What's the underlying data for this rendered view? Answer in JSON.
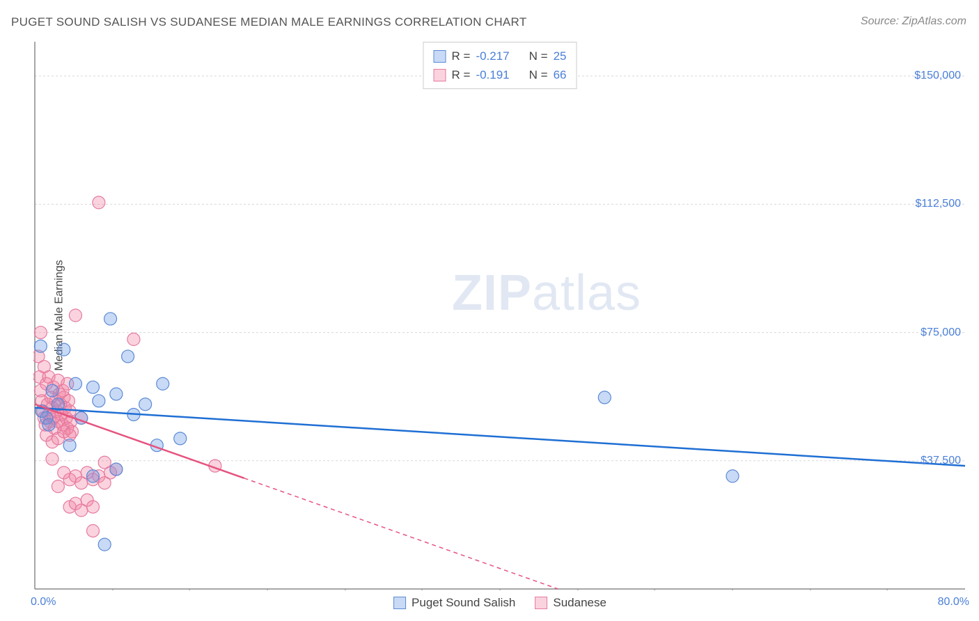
{
  "title": "PUGET SOUND SALISH VS SUDANESE MEDIAN MALE EARNINGS CORRELATION CHART",
  "source": "Source: ZipAtlas.com",
  "y_axis_label": "Median Male Earnings",
  "watermark_zip": "ZIP",
  "watermark_atlas": "atlas",
  "chart": {
    "type": "scatter",
    "xlim": [
      0,
      80
    ],
    "ylim": [
      0,
      160000
    ],
    "x_tick_left": "0.0%",
    "x_tick_right": "80.0%",
    "x_minor_ticks": [
      6.7,
      13.3,
      20,
      26.7,
      33.3,
      40,
      46.7,
      53.3,
      60,
      66.7,
      73.3
    ],
    "y_ticks": [
      37500,
      75000,
      112500,
      150000
    ],
    "y_tick_labels": [
      "$37,500",
      "$75,000",
      "$112,500",
      "$150,000"
    ],
    "background_color": "#ffffff",
    "grid_color": "#d8d8d8",
    "axis_color": "#888888",
    "series": [
      {
        "name": "Puget Sound Salish",
        "color_fill": "rgba(100,150,230,0.35)",
        "color_stroke": "#5a8ad6",
        "trend_color": "#1f6fd4",
        "r_label": "R =",
        "r_value": "-0.217",
        "n_label": "N =",
        "n_value": "25",
        "trend": {
          "x1": 0,
          "y1": 53000,
          "x2": 80,
          "y2": 36000,
          "solid_until_x": 80
        },
        "points": [
          [
            0.5,
            71000
          ],
          [
            0.6,
            52000
          ],
          [
            1.0,
            50000
          ],
          [
            1.2,
            48000
          ],
          [
            1.5,
            58000
          ],
          [
            2.0,
            54000
          ],
          [
            2.5,
            70000
          ],
          [
            3.0,
            42000
          ],
          [
            3.5,
            60000
          ],
          [
            4.0,
            50000
          ],
          [
            5.0,
            59000
          ],
          [
            5.5,
            55000
          ],
          [
            6.5,
            79000
          ],
          [
            7.0,
            57000
          ],
          [
            8.0,
            68000
          ],
          [
            8.5,
            51000
          ],
          [
            9.5,
            54000
          ],
          [
            10.5,
            42000
          ],
          [
            11.0,
            60000
          ],
          [
            12.5,
            44000
          ],
          [
            5.0,
            33000
          ],
          [
            6.0,
            13000
          ],
          [
            49.0,
            56000
          ],
          [
            60.0,
            33000
          ],
          [
            7.0,
            35000
          ]
        ]
      },
      {
        "name": "Sudanese",
        "color_fill": "rgba(240,130,160,0.35)",
        "color_stroke": "#e67aa0",
        "trend_color": "#e5537f",
        "r_label": "R =",
        "r_value": "-0.191",
        "n_label": "N =",
        "n_value": "66",
        "trend": {
          "x1": 0,
          "y1": 54000,
          "x2": 45,
          "y2": 0,
          "solid_until_x": 18
        },
        "points": [
          [
            0.3,
            68000
          ],
          [
            0.4,
            62000
          ],
          [
            0.5,
            58000
          ],
          [
            0.6,
            55000
          ],
          [
            0.7,
            52000
          ],
          [
            0.8,
            50000
          ],
          [
            0.9,
            48000
          ],
          [
            1.0,
            60000
          ],
          [
            1.1,
            54000
          ],
          [
            1.2,
            51000
          ],
          [
            1.3,
            49000
          ],
          [
            1.4,
            56000
          ],
          [
            1.5,
            53000
          ],
          [
            1.6,
            50000
          ],
          [
            1.7,
            47000
          ],
          [
            1.8,
            55000
          ],
          [
            1.9,
            52000
          ],
          [
            2.0,
            49000
          ],
          [
            2.1,
            57000
          ],
          [
            2.2,
            54000
          ],
          [
            2.3,
            51000
          ],
          [
            2.4,
            48000
          ],
          [
            2.5,
            56000
          ],
          [
            2.6,
            53000
          ],
          [
            2.7,
            50000
          ],
          [
            2.8,
            47000
          ],
          [
            2.9,
            55000
          ],
          [
            3.0,
            52000
          ],
          [
            3.1,
            49000
          ],
          [
            3.2,
            46000
          ],
          [
            1.0,
            45000
          ],
          [
            1.5,
            43000
          ],
          [
            2.0,
            44000
          ],
          [
            2.5,
            46000
          ],
          [
            3.0,
            45000
          ],
          [
            0.5,
            75000
          ],
          [
            3.5,
            80000
          ],
          [
            5.5,
            113000
          ],
          [
            8.5,
            73000
          ],
          [
            4.0,
            50000
          ],
          [
            2.5,
            34000
          ],
          [
            3.0,
            32000
          ],
          [
            3.5,
            33000
          ],
          [
            4.0,
            31000
          ],
          [
            4.5,
            34000
          ],
          [
            5.0,
            32000
          ],
          [
            5.5,
            33000
          ],
          [
            6.0,
            31000
          ],
          [
            6.5,
            34000
          ],
          [
            2.0,
            30000
          ],
          [
            3.0,
            24000
          ],
          [
            3.5,
            25000
          ],
          [
            4.0,
            23000
          ],
          [
            4.5,
            26000
          ],
          [
            5.0,
            24000
          ],
          [
            5.0,
            17000
          ],
          [
            6.0,
            37000
          ],
          [
            7.0,
            35000
          ],
          [
            15.5,
            36000
          ],
          [
            1.5,
            38000
          ],
          [
            0.8,
            65000
          ],
          [
            1.2,
            62000
          ],
          [
            1.6,
            59000
          ],
          [
            2.0,
            61000
          ],
          [
            2.4,
            58000
          ],
          [
            2.8,
            60000
          ]
        ]
      }
    ]
  }
}
